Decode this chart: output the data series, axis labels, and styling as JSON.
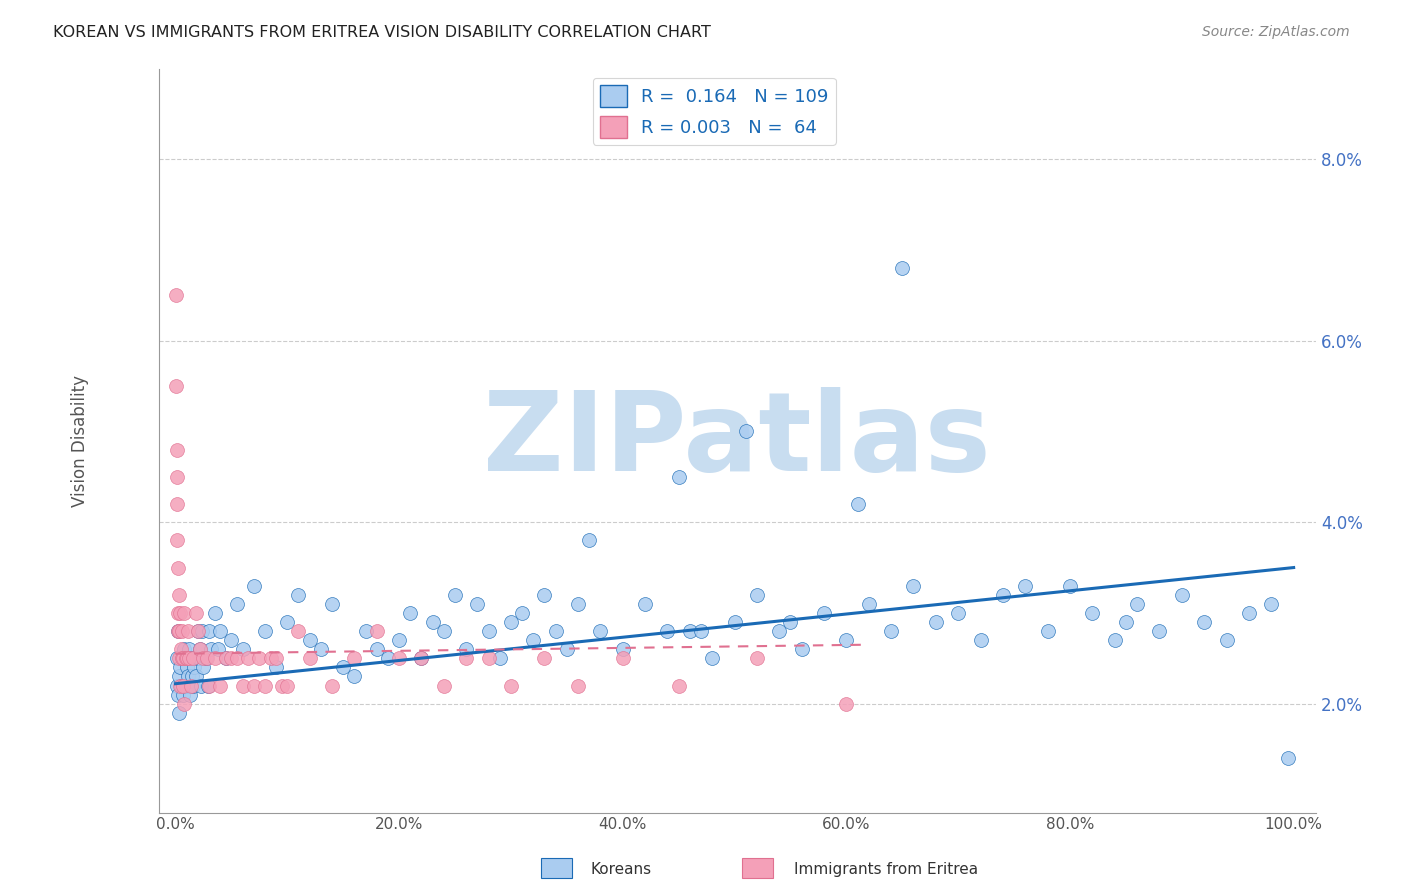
{
  "title": "KOREAN VS IMMIGRANTS FROM ERITREA VISION DISABILITY CORRELATION CHART",
  "source": "Source: ZipAtlas.com",
  "ylabel": "Vision Disability",
  "legend_labels": [
    "Koreans",
    "Immigrants from Eritrea"
  ],
  "korean_R": 0.164,
  "korean_N": 109,
  "eritrea_R": 0.003,
  "eritrea_N": 64,
  "korean_color": "#aaccf0",
  "eritrea_color": "#f4a0b8",
  "korean_line_color": "#1a6ab5",
  "eritrea_line_color": "#e07090",
  "background_color": "#ffffff",
  "watermark": "ZIPatlas",
  "watermark_color": "#c8ddf0",
  "title_fontsize": 11.5,
  "source_fontsize": 10,
  "xlim": [
    -1.5,
    102
  ],
  "ylim": [
    0.008,
    0.09
  ],
  "ytick_values": [
    0.02,
    0.04,
    0.06,
    0.08
  ],
  "ytick_labels": [
    "2.0%",
    "4.0%",
    "6.0%",
    "8.0%"
  ],
  "xtick_values": [
    0,
    20,
    40,
    60,
    80,
    100
  ],
  "xtick_labels": [
    "0.0%",
    "20.0%",
    "40.0%",
    "60.0%",
    "80.0%",
    "100.0%"
  ],
  "korean_x": [
    0.1,
    0.15,
    0.2,
    0.25,
    0.3,
    0.35,
    0.4,
    0.5,
    0.6,
    0.7,
    0.8,
    0.9,
    1.0,
    1.1,
    1.2,
    1.3,
    1.4,
    1.5,
    1.6,
    1.7,
    1.8,
    1.9,
    2.0,
    2.1,
    2.2,
    2.3,
    2.4,
    2.5,
    2.7,
    2.9,
    3.0,
    3.2,
    3.5,
    3.8,
    4.0,
    4.5,
    5.0,
    5.5,
    6.0,
    7.0,
    8.0,
    9.0,
    10.0,
    11.0,
    12.0,
    13.0,
    14.0,
    15.0,
    16.0,
    17.0,
    18.0,
    19.0,
    20.0,
    21.0,
    22.0,
    23.0,
    24.0,
    25.0,
    26.0,
    27.0,
    28.0,
    29.0,
    30.0,
    31.0,
    32.0,
    33.0,
    34.0,
    35.0,
    36.0,
    38.0,
    40.0,
    42.0,
    44.0,
    45.0,
    46.0,
    48.0,
    50.0,
    52.0,
    54.0,
    55.0,
    56.0,
    58.0,
    60.0,
    62.0,
    64.0,
    65.0,
    66.0,
    68.0,
    70.0,
    72.0,
    74.0,
    76.0,
    78.0,
    80.0,
    82.0,
    84.0,
    85.0,
    86.0,
    88.0,
    90.0,
    92.0,
    94.0,
    96.0,
    98.0,
    99.5,
    37.0,
    47.0,
    51.0,
    61.0
  ],
  "korean_y": [
    0.025,
    0.022,
    0.028,
    0.021,
    0.023,
    0.019,
    0.024,
    0.022,
    0.025,
    0.021,
    0.026,
    0.022,
    0.024,
    0.023,
    0.026,
    0.021,
    0.025,
    0.023,
    0.022,
    0.024,
    0.023,
    0.025,
    0.028,
    0.025,
    0.026,
    0.022,
    0.028,
    0.024,
    0.025,
    0.022,
    0.028,
    0.026,
    0.03,
    0.026,
    0.028,
    0.025,
    0.027,
    0.031,
    0.026,
    0.033,
    0.028,
    0.024,
    0.029,
    0.032,
    0.027,
    0.026,
    0.031,
    0.024,
    0.023,
    0.028,
    0.026,
    0.025,
    0.027,
    0.03,
    0.025,
    0.029,
    0.028,
    0.032,
    0.026,
    0.031,
    0.028,
    0.025,
    0.029,
    0.03,
    0.027,
    0.032,
    0.028,
    0.026,
    0.031,
    0.028,
    0.026,
    0.031,
    0.028,
    0.045,
    0.028,
    0.025,
    0.029,
    0.032,
    0.028,
    0.029,
    0.026,
    0.03,
    0.027,
    0.031,
    0.028,
    0.068,
    0.033,
    0.029,
    0.03,
    0.027,
    0.032,
    0.033,
    0.028,
    0.033,
    0.03,
    0.027,
    0.029,
    0.031,
    0.028,
    0.032,
    0.029,
    0.027,
    0.03,
    0.031,
    0.014,
    0.038,
    0.028,
    0.05,
    0.042
  ],
  "eritrea_x": [
    0.05,
    0.08,
    0.1,
    0.12,
    0.15,
    0.18,
    0.2,
    0.22,
    0.25,
    0.28,
    0.3,
    0.35,
    0.4,
    0.45,
    0.5,
    0.55,
    0.6,
    0.65,
    0.7,
    0.75,
    0.8,
    0.9,
    1.0,
    1.1,
    1.2,
    1.4,
    1.6,
    1.8,
    2.0,
    2.2,
    2.5,
    2.8,
    3.0,
    3.5,
    4.0,
    4.5,
    5.0,
    5.5,
    6.0,
    6.5,
    7.0,
    7.5,
    8.0,
    8.5,
    9.0,
    9.5,
    10.0,
    11.0,
    12.0,
    14.0,
    16.0,
    18.0,
    20.0,
    22.0,
    24.0,
    26.0,
    28.0,
    30.0,
    33.0,
    36.0,
    40.0,
    45.0,
    52.0,
    60.0
  ],
  "eritrea_y": [
    0.065,
    0.055,
    0.048,
    0.042,
    0.038,
    0.045,
    0.035,
    0.03,
    0.028,
    0.025,
    0.032,
    0.028,
    0.022,
    0.03,
    0.026,
    0.025,
    0.028,
    0.022,
    0.025,
    0.02,
    0.03,
    0.025,
    0.025,
    0.028,
    0.025,
    0.022,
    0.025,
    0.03,
    0.028,
    0.026,
    0.025,
    0.025,
    0.022,
    0.025,
    0.022,
    0.025,
    0.025,
    0.025,
    0.022,
    0.025,
    0.022,
    0.025,
    0.022,
    0.025,
    0.025,
    0.022,
    0.022,
    0.028,
    0.025,
    0.022,
    0.025,
    0.028,
    0.025,
    0.025,
    0.022,
    0.025,
    0.025,
    0.022,
    0.025,
    0.022,
    0.025,
    0.022,
    0.025,
    0.02
  ]
}
